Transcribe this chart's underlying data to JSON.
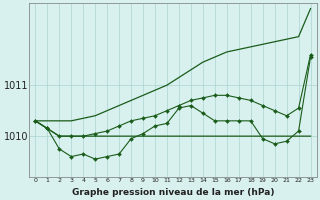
{
  "background_color": "#d8f0ee",
  "grid_color": "#aad4d0",
  "line_color": "#1a5c1a",
  "title": "Graphe pression niveau de la mer (hPa)",
  "hours": [
    0,
    1,
    2,
    3,
    4,
    5,
    6,
    7,
    8,
    9,
    10,
    11,
    12,
    13,
    14,
    15,
    16,
    17,
    18,
    19,
    20,
    21,
    22,
    23
  ],
  "ylim": [
    1009.2,
    1012.6
  ],
  "yticks": [
    1010,
    1011
  ],
  "line_diagonal": [
    1010.3,
    1010.3,
    1010.3,
    1010.3,
    1010.35,
    1010.4,
    1010.5,
    1010.6,
    1010.7,
    1010.8,
    1010.9,
    1011.0,
    1011.15,
    1011.3,
    1011.45,
    1011.55,
    1011.65,
    1011.7,
    1011.75,
    1011.8,
    1011.85,
    1011.9,
    1011.95,
    1012.5
  ],
  "line_flat": [
    1010.3,
    1010.15,
    1010.0,
    1010.0,
    1010.0,
    1010.0,
    1010.0,
    1010.0,
    1010.0,
    1010.0,
    1010.0,
    1010.0,
    1010.0,
    1010.0,
    1010.0,
    1010.0,
    1010.0,
    1010.0,
    1010.0,
    1010.0,
    1010.0,
    1010.0,
    1010.0,
    1010.0
  ],
  "line_jagged": [
    1010.3,
    1010.15,
    1009.75,
    1009.6,
    1009.65,
    1009.55,
    1009.6,
    1009.65,
    1009.95,
    1010.05,
    1010.2,
    1010.25,
    1010.55,
    1010.6,
    1010.45,
    1010.3,
    1010.3,
    1010.3,
    1010.3,
    1009.95,
    1009.85,
    1009.9,
    1010.1,
    1011.55
  ],
  "line_trend": [
    1010.3,
    1010.15,
    1010.0,
    1010.0,
    1010.0,
    1010.05,
    1010.1,
    1010.2,
    1010.3,
    1010.35,
    1010.4,
    1010.5,
    1010.6,
    1010.7,
    1010.75,
    1010.8,
    1010.8,
    1010.75,
    1010.7,
    1010.6,
    1010.5,
    1010.4,
    1010.55,
    1011.6
  ]
}
